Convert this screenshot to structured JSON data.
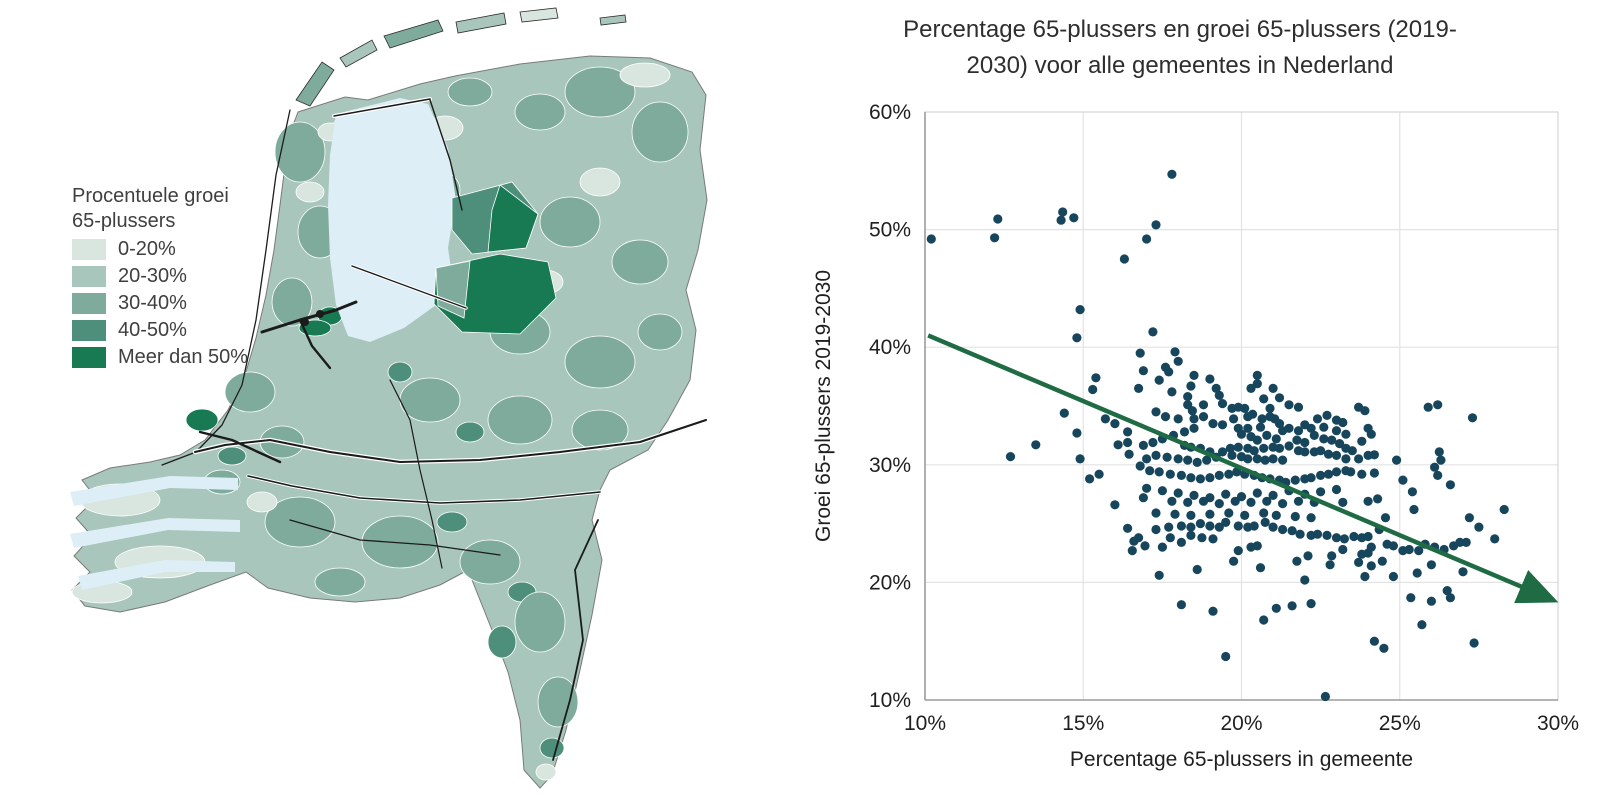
{
  "map": {
    "legend": {
      "title_line1": "Procentuele groei",
      "title_line2": "65-plussers",
      "items": [
        {
          "label": "0-20%",
          "color": "#d9e5df"
        },
        {
          "label": "20-30%",
          "color": "#a8c6bb"
        },
        {
          "label": "30-40%",
          "color": "#7fab9d"
        },
        {
          "label": "40-50%",
          "color": "#4d8f7b"
        },
        {
          "label": "Meer dan 50%",
          "color": "#177a53"
        }
      ]
    },
    "water_color": "#ddeef7"
  },
  "chart_data": {
    "type": "scatter",
    "title": "Percentage 65-plussers en groei 65-plussers (2019-2030) voor alle gemeentes in Nederland",
    "title_lines": [
      "Percentage 65-plussers en groei 65-plussers (2019-",
      "2030) voor alle gemeentes in Nederland"
    ],
    "xlabel": "Percentage 65-plussers in gemeente",
    "ylabel": "Groei 65-plussers 2019-2030",
    "xlim": [
      10,
      30
    ],
    "ylim": [
      10,
      60
    ],
    "x_tick_values": [
      10,
      15,
      20,
      25,
      30
    ],
    "x_tick_labels": [
      "10%",
      "15%",
      "20%",
      "25%",
      "30%"
    ],
    "y_tick_values": [
      10,
      20,
      30,
      40,
      50,
      60
    ],
    "y_tick_labels": [
      "10%",
      "20%",
      "30%",
      "40%",
      "50%",
      "60%"
    ],
    "grid": true,
    "legend_position": "none",
    "point_color": "#17465c",
    "trend_color": "#1f6b44",
    "trendline": {
      "x1": 10.1,
      "y1": 41.0,
      "x2": 29.75,
      "y2": 18.6
    },
    "points": [
      [
        10.2,
        49.2
      ],
      [
        12.2,
        49.3
      ],
      [
        12.3,
        50.9
      ],
      [
        14.35,
        51.5
      ],
      [
        14.3,
        50.8
      ],
      [
        14.7,
        51.0
      ],
      [
        16.3,
        47.5
      ],
      [
        17.8,
        54.7
      ],
      [
        17.3,
        50.4
      ],
      [
        17.0,
        49.2
      ],
      [
        14.9,
        43.2
      ],
      [
        14.8,
        40.8
      ],
      [
        15.4,
        37.4
      ],
      [
        15.3,
        36.4
      ],
      [
        14.4,
        34.4
      ],
      [
        14.8,
        32.7
      ],
      [
        15.7,
        33.9
      ],
      [
        16.0,
        33.5
      ],
      [
        16.4,
        32.8
      ],
      [
        16.1,
        31.7
      ],
      [
        16.4,
        31.9
      ],
      [
        16.45,
        30.9
      ],
      [
        13.5,
        31.7
      ],
      [
        12.7,
        30.7
      ],
      [
        14.9,
        30.5
      ],
      [
        15.2,
        28.8
      ],
      [
        15.5,
        29.2
      ],
      [
        16.0,
        26.6
      ],
      [
        16.4,
        24.6
      ],
      [
        16.6,
        23.5
      ],
      [
        16.55,
        22.7
      ],
      [
        17.2,
        41.3
      ],
      [
        17.9,
        39.6
      ],
      [
        16.8,
        39.5
      ],
      [
        18.0,
        38.8
      ],
      [
        17.6,
        38.3
      ],
      [
        16.9,
        38.0
      ],
      [
        17.7,
        37.9
      ],
      [
        17.4,
        37.2
      ],
      [
        18.5,
        37.6
      ],
      [
        19.0,
        37.3
      ],
      [
        18.4,
        36.7
      ],
      [
        19.2,
        36.5
      ],
      [
        16.75,
        36.5
      ],
      [
        20.5,
        37.6
      ],
      [
        20.5,
        36.9
      ],
      [
        20.3,
        36.5
      ],
      [
        21.0,
        36.5
      ],
      [
        18.3,
        35.8
      ],
      [
        17.8,
        36.2
      ],
      [
        19.3,
        35.9
      ],
      [
        19.4,
        35.2
      ],
      [
        19.9,
        34.9
      ],
      [
        20.7,
        35.6
      ],
      [
        21.2,
        35.7
      ],
      [
        20.9,
        34.8
      ],
      [
        21.5,
        35.1
      ],
      [
        21.8,
        34.9
      ],
      [
        18.3,
        35.1
      ],
      [
        18.45,
        34.6
      ],
      [
        18.8,
        35.1
      ],
      [
        17.3,
        34.5
      ],
      [
        17.6,
        34.1
      ],
      [
        18.0,
        33.9
      ],
      [
        18.5,
        33.9
      ],
      [
        18.8,
        34.1
      ],
      [
        19.1,
        33.5
      ],
      [
        19.4,
        33.4
      ],
      [
        19.7,
        34.8
      ],
      [
        19.75,
        33.9
      ],
      [
        20.1,
        34.8
      ],
      [
        20.2,
        34.1
      ],
      [
        20.35,
        34.3
      ],
      [
        20.65,
        33.9
      ],
      [
        20.9,
        34.1
      ],
      [
        21.05,
        33.9
      ],
      [
        21.2,
        33.5
      ],
      [
        20.6,
        33.2
      ],
      [
        20.2,
        33.1
      ],
      [
        19.9,
        33.1
      ],
      [
        20.0,
        32.6
      ],
      [
        20.3,
        32.4
      ],
      [
        20.5,
        32.1
      ],
      [
        20.8,
        32.5
      ],
      [
        21.1,
        32.2
      ],
      [
        21.3,
        32.9
      ],
      [
        21.5,
        33.1
      ],
      [
        21.8,
        32.9
      ],
      [
        22.0,
        33.4
      ],
      [
        22.2,
        33.1
      ],
      [
        22.4,
        33.9
      ],
      [
        22.7,
        34.2
      ],
      [
        23.0,
        33.8
      ],
      [
        23.2,
        33.6
      ],
      [
        23.0,
        32.9
      ],
      [
        23.3,
        32.6
      ],
      [
        22.6,
        33.2
      ],
      [
        22.3,
        32.5
      ],
      [
        22.6,
        32.2
      ],
      [
        22.85,
        32.1
      ],
      [
        23.1,
        31.8
      ],
      [
        23.3,
        31.4
      ],
      [
        21.75,
        32.1
      ],
      [
        22.0,
        31.9
      ],
      [
        21.5,
        31.6
      ],
      [
        21.8,
        31.2
      ],
      [
        22.0,
        31.1
      ],
      [
        22.3,
        31.1
      ],
      [
        22.5,
        31.2
      ],
      [
        22.75,
        30.9
      ],
      [
        23.0,
        30.8
      ],
      [
        23.3,
        30.5
      ],
      [
        21.2,
        31.4
      ],
      [
        21.0,
        31.5
      ],
      [
        20.7,
        31.4
      ],
      [
        20.4,
        31.2
      ],
      [
        20.2,
        31.4
      ],
      [
        19.9,
        31.5
      ],
      [
        19.65,
        31.4
      ],
      [
        19.4,
        31.1
      ],
      [
        19.7,
        30.8
      ],
      [
        20.0,
        30.7
      ],
      [
        20.2,
        30.5
      ],
      [
        20.5,
        30.5
      ],
      [
        20.75,
        30.4
      ],
      [
        21.0,
        30.5
      ],
      [
        21.3,
        30.4
      ],
      [
        18.5,
        33.1
      ],
      [
        18.2,
        32.8
      ],
      [
        17.85,
        32.5
      ],
      [
        17.5,
        32.2
      ],
      [
        17.2,
        31.9
      ],
      [
        16.9,
        31.65
      ],
      [
        18.2,
        31.65
      ],
      [
        18.4,
        31.5
      ],
      [
        18.7,
        31.4
      ],
      [
        19.0,
        31.1
      ],
      [
        19.2,
        30.65
      ],
      [
        18.9,
        30.4
      ],
      [
        18.6,
        30.2
      ],
      [
        18.3,
        30.4
      ],
      [
        18.0,
        30.5
      ],
      [
        17.65,
        30.65
      ],
      [
        17.3,
        30.8
      ],
      [
        17.0,
        30.5
      ],
      [
        16.8,
        29.9
      ],
      [
        17.1,
        29.5
      ],
      [
        17.4,
        29.4
      ],
      [
        17.75,
        29.2
      ],
      [
        18.1,
        29.1
      ],
      [
        18.4,
        28.9
      ],
      [
        18.7,
        28.8
      ],
      [
        19.0,
        28.9
      ],
      [
        19.3,
        29.1
      ],
      [
        19.6,
        29.2
      ],
      [
        19.85,
        29.4
      ],
      [
        20.1,
        29.2
      ],
      [
        20.4,
        29.1
      ],
      [
        20.65,
        28.9
      ],
      [
        20.9,
        28.8
      ],
      [
        21.2,
        28.7
      ],
      [
        21.4,
        28.5
      ],
      [
        21.7,
        28.7
      ],
      [
        22.0,
        28.8
      ],
      [
        22.2,
        28.9
      ],
      [
        22.5,
        29.1
      ],
      [
        22.75,
        29.2
      ],
      [
        23.0,
        29.4
      ],
      [
        23.3,
        29.5
      ],
      [
        17.0,
        28.0
      ],
      [
        17.5,
        27.8
      ],
      [
        18.0,
        27.6
      ],
      [
        18.5,
        27.4
      ],
      [
        19.0,
        27.2
      ],
      [
        19.5,
        27.5
      ],
      [
        20.0,
        27.3
      ],
      [
        20.5,
        27.6
      ],
      [
        21.0,
        27.4
      ],
      [
        21.5,
        27.8
      ],
      [
        22.0,
        27.5
      ],
      [
        22.5,
        27.7
      ],
      [
        23.0,
        27.9
      ],
      [
        17.8,
        26.9
      ],
      [
        18.3,
        26.8
      ],
      [
        18.8,
        26.9
      ],
      [
        19.3,
        26.7
      ],
      [
        19.8,
        26.9
      ],
      [
        20.3,
        26.8
      ],
      [
        20.8,
        26.9
      ],
      [
        21.3,
        26.7
      ],
      [
        21.8,
        26.9
      ],
      [
        22.3,
        26.8
      ],
      [
        16.9,
        27.2
      ],
      [
        23.2,
        26.8
      ],
      [
        17.4,
        20.6
      ],
      [
        18.6,
        21.1
      ],
      [
        19.75,
        21.8
      ],
      [
        20.6,
        21.25
      ],
      [
        22.0,
        20.2
      ],
      [
        21.75,
        21.8
      ],
      [
        22.1,
        22.25
      ],
      [
        22.8,
        21.5
      ],
      [
        22.85,
        22.25
      ],
      [
        23.2,
        22.8
      ],
      [
        19.9,
        22.7
      ],
      [
        20.3,
        23.0
      ],
      [
        20.5,
        23.1
      ],
      [
        17.5,
        23.0
      ],
      [
        17.75,
        23.8
      ],
      [
        18.1,
        23.4
      ],
      [
        18.4,
        24.0
      ],
      [
        18.75,
        23.8
      ],
      [
        19.1,
        23.7
      ],
      [
        16.95,
        23.1
      ],
      [
        16.75,
        23.8
      ],
      [
        17.3,
        24.5
      ],
      [
        17.7,
        24.7
      ],
      [
        18.1,
        24.8
      ],
      [
        18.4,
        24.7
      ],
      [
        18.7,
        25.0
      ],
      [
        19.0,
        24.8
      ],
      [
        19.3,
        24.7
      ],
      [
        19.5,
        25.1
      ],
      [
        19.9,
        24.8
      ],
      [
        20.2,
        24.7
      ],
      [
        20.4,
        24.8
      ],
      [
        20.75,
        25.1
      ],
      [
        21.0,
        24.7
      ],
      [
        21.3,
        24.5
      ],
      [
        21.6,
        24.4
      ],
      [
        21.85,
        24.1
      ],
      [
        22.2,
        24.0
      ],
      [
        22.4,
        24.1
      ],
      [
        22.7,
        24.0
      ],
      [
        23.0,
        23.8
      ],
      [
        23.25,
        23.7
      ],
      [
        19.0,
        25.8
      ],
      [
        19.6,
        25.9
      ],
      [
        20.1,
        25.7
      ],
      [
        20.7,
        25.9
      ],
      [
        21.1,
        25.7
      ],
      [
        21.7,
        25.6
      ],
      [
        22.2,
        25.5
      ],
      [
        17.3,
        25.9
      ],
      [
        17.9,
        25.8
      ],
      [
        18.4,
        25.7
      ],
      [
        18.1,
        18.1
      ],
      [
        19.1,
        17.55
      ],
      [
        20.7,
        16.8
      ],
      [
        21.1,
        17.8
      ],
      [
        21.6,
        18.0
      ],
      [
        22.2,
        18.2
      ],
      [
        19.5,
        13.7
      ],
      [
        22.65,
        10.3
      ],
      [
        23.7,
        34.9
      ],
      [
        23.9,
        34.6
      ],
      [
        25.9,
        34.9
      ],
      [
        26.2,
        35.1
      ],
      [
        27.3,
        34.0
      ],
      [
        24.0,
        33.1
      ],
      [
        24.1,
        32.6
      ],
      [
        23.8,
        32.0
      ],
      [
        23.5,
        31.2
      ],
      [
        24.0,
        30.8
      ],
      [
        23.7,
        30.5
      ],
      [
        24.2,
        30.85
      ],
      [
        24.9,
        30.4
      ],
      [
        26.25,
        31.1
      ],
      [
        26.3,
        30.4
      ],
      [
        26.1,
        29.8
      ],
      [
        23.45,
        29.4
      ],
      [
        23.8,
        29.2
      ],
      [
        24.2,
        29.3
      ],
      [
        25.1,
        28.7
      ],
      [
        26.2,
        29.1
      ],
      [
        26.6,
        28.3
      ],
      [
        25.4,
        27.7
      ],
      [
        24.3,
        27.1
      ],
      [
        24.0,
        26.9
      ],
      [
        25.45,
        26.2
      ],
      [
        27.2,
        25.5
      ],
      [
        28.3,
        26.2
      ],
      [
        27.5,
        24.7
      ],
      [
        26.9,
        23.4
      ],
      [
        27.1,
        23.4
      ],
      [
        28.0,
        23.7
      ],
      [
        26.7,
        23.1
      ],
      [
        26.4,
        22.8
      ],
      [
        26.1,
        23.0
      ],
      [
        25.8,
        23.25
      ],
      [
        25.6,
        22.7
      ],
      [
        25.3,
        22.8
      ],
      [
        25.1,
        22.7
      ],
      [
        24.8,
        23.1
      ],
      [
        24.6,
        23.25
      ],
      [
        24.35,
        24.5
      ],
      [
        24.55,
        25.5
      ],
      [
        24.0,
        23.9
      ],
      [
        23.8,
        23.8
      ],
      [
        23.55,
        23.9
      ],
      [
        23.8,
        22.4
      ],
      [
        24.0,
        22.5
      ],
      [
        24.1,
        23.0
      ],
      [
        23.7,
        21.7
      ],
      [
        24.1,
        21.4
      ],
      [
        24.45,
        21.8
      ],
      [
        23.9,
        20.5
      ],
      [
        24.8,
        20.5
      ],
      [
        25.55,
        20.8
      ],
      [
        26.0,
        21.5
      ],
      [
        27.0,
        20.9
      ],
      [
        25.35,
        18.7
      ],
      [
        26.0,
        18.4
      ],
      [
        26.5,
        19.3
      ],
      [
        26.6,
        18.7
      ],
      [
        25.7,
        16.4
      ],
      [
        24.2,
        15.0
      ],
      [
        24.5,
        14.4
      ],
      [
        27.35,
        14.85
      ]
    ]
  }
}
